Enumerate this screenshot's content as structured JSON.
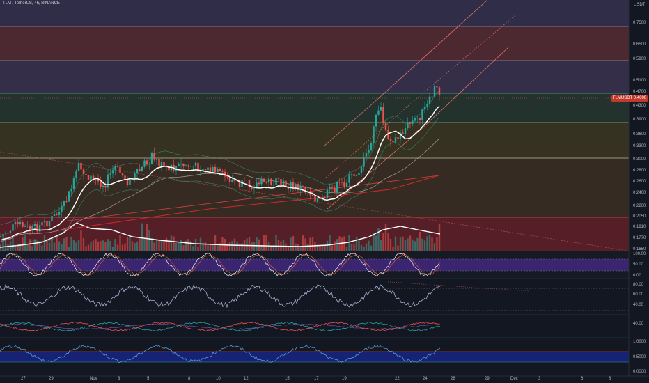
{
  "header": {
    "title": "TLM / TetherUS, 4h, BINANCE"
  },
  "price_axis": {
    "unit": "USDT",
    "labels": [
      "0.7500",
      "0.6500",
      "0.5900",
      "0.5100",
      "0.4700",
      "0.4300",
      "0.3900",
      "0.3600",
      "0.3300",
      "0.3000",
      "0.2800",
      "0.2600",
      "0.2400",
      "0.2200",
      "0.2050",
      "0.1910",
      "0.1770",
      "0.1650"
    ],
    "current_price_tag": "TLMUSDT 0.4600"
  },
  "indicator_axes": {
    "stoch": [
      "100.00",
      "50.00",
      "0.00"
    ],
    "rsi": [
      "80.00",
      "60.00",
      "40.00"
    ],
    "dmi": [
      "40.00"
    ],
    "mfi": [
      "1.0000",
      "0.5000",
      "0.0000"
    ]
  },
  "time_axis": [
    "27",
    "29",
    "Nov",
    "3",
    "5",
    "8",
    "10",
    "12",
    "15",
    "17",
    "19",
    "22",
    "24",
    "26",
    "29",
    "Dec",
    "3",
    "6",
    "8"
  ],
  "colors": {
    "background": "#131722",
    "up": "#26a69a",
    "down": "#ef5350",
    "ma": "#ffffff",
    "channel": "#e57368",
    "tag": "#c0392b"
  }
}
